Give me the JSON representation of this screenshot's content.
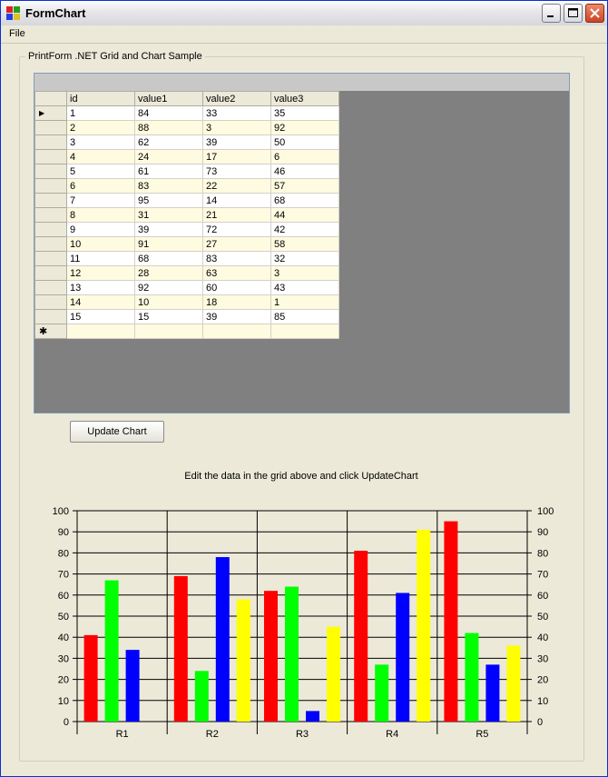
{
  "window": {
    "title": "FormChart"
  },
  "menu": {
    "file": "File"
  },
  "group": {
    "label": "PrintForm .NET Grid and Chart Sample"
  },
  "grid": {
    "columns": [
      "id",
      "value1",
      "value2",
      "value3"
    ],
    "rows": [
      [
        "1",
        "84",
        "33",
        "35"
      ],
      [
        "2",
        "88",
        "3",
        "92"
      ],
      [
        "3",
        "62",
        "39",
        "50"
      ],
      [
        "4",
        "24",
        "17",
        "6"
      ],
      [
        "5",
        "61",
        "73",
        "46"
      ],
      [
        "6",
        "83",
        "22",
        "57"
      ],
      [
        "7",
        "95",
        "14",
        "68"
      ],
      [
        "8",
        "31",
        "21",
        "44"
      ],
      [
        "9",
        "39",
        "72",
        "42"
      ],
      [
        "10",
        "91",
        "27",
        "58"
      ],
      [
        "11",
        "68",
        "83",
        "32"
      ],
      [
        "12",
        "28",
        "63",
        "3"
      ],
      [
        "13",
        "92",
        "60",
        "43"
      ],
      [
        "14",
        "10",
        "18",
        "1"
      ],
      [
        "15",
        "15",
        "39",
        "85"
      ]
    ],
    "current_row_marker": "▶",
    "new_row_marker": "✱"
  },
  "update_button": "Update Chart",
  "instruction": "Edit the data in the grid above and click UpdateChart",
  "chart_data": {
    "type": "bar",
    "categories": [
      "R1",
      "R2",
      "R3",
      "R4",
      "R5"
    ],
    "series": [
      {
        "color": "#ff0000",
        "values": [
          41,
          69,
          62,
          81,
          95
        ]
      },
      {
        "color": "#00ff00",
        "values": [
          67,
          24,
          64,
          27,
          42
        ]
      },
      {
        "color": "#0000ff",
        "values": [
          34,
          78,
          5,
          61,
          27
        ]
      },
      {
        "color": "#ffff00",
        "values": [
          0,
          58,
          45,
          91,
          36
        ]
      }
    ],
    "ylim": [
      0,
      100
    ],
    "yticks": [
      0,
      10,
      20,
      30,
      40,
      50,
      60,
      70,
      80,
      90,
      100
    ],
    "grid": true,
    "secondary_y_axis": true
  }
}
